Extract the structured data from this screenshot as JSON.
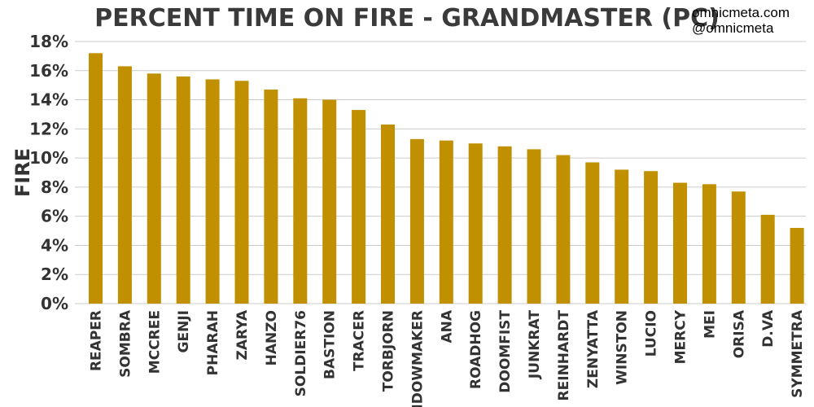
{
  "credits": [
    "omnicmeta.com",
    "@omnicmeta"
  ],
  "colors": {
    "bar": "#C09000",
    "grid": "#cccccc",
    "text": "#333333"
  },
  "chart_data": {
    "type": "bar",
    "title": "PERCENT TIME ON FIRE - GRANDMASTER (PC)",
    "xlabel": "",
    "ylabel": "FIRE",
    "ylim": [
      0,
      18
    ],
    "yticks": [
      0,
      2,
      4,
      6,
      8,
      10,
      12,
      14,
      16,
      18
    ],
    "ytick_labels": [
      "0%",
      "2%",
      "4%",
      "6%",
      "8%",
      "10%",
      "12%",
      "14%",
      "16%",
      "18%"
    ],
    "grid": true,
    "categories": [
      "REAPER",
      "SOMBRA",
      "MCCREE",
      "GENJI",
      "PHARAH",
      "ZARYA",
      "HANZO",
      "SOLDIER76",
      "BASTION",
      "TRACER",
      "TORBJORN",
      "WIDOWMAKER",
      "ANA",
      "ROADHOG",
      "DOOMFIST",
      "JUNKRAT",
      "REINHARDT",
      "ZENYATTA",
      "WINSTON",
      "LUCIO",
      "MERCY",
      "MEI",
      "ORISA",
      "D.VA",
      "SYMMETRA"
    ],
    "values": [
      17.2,
      16.3,
      15.8,
      15.6,
      15.4,
      15.3,
      14.7,
      14.1,
      14.0,
      13.3,
      12.3,
      11.3,
      11.2,
      11.0,
      10.8,
      10.6,
      10.2,
      9.7,
      9.2,
      9.1,
      8.3,
      8.2,
      7.7,
      6.1,
      5.2
    ]
  }
}
